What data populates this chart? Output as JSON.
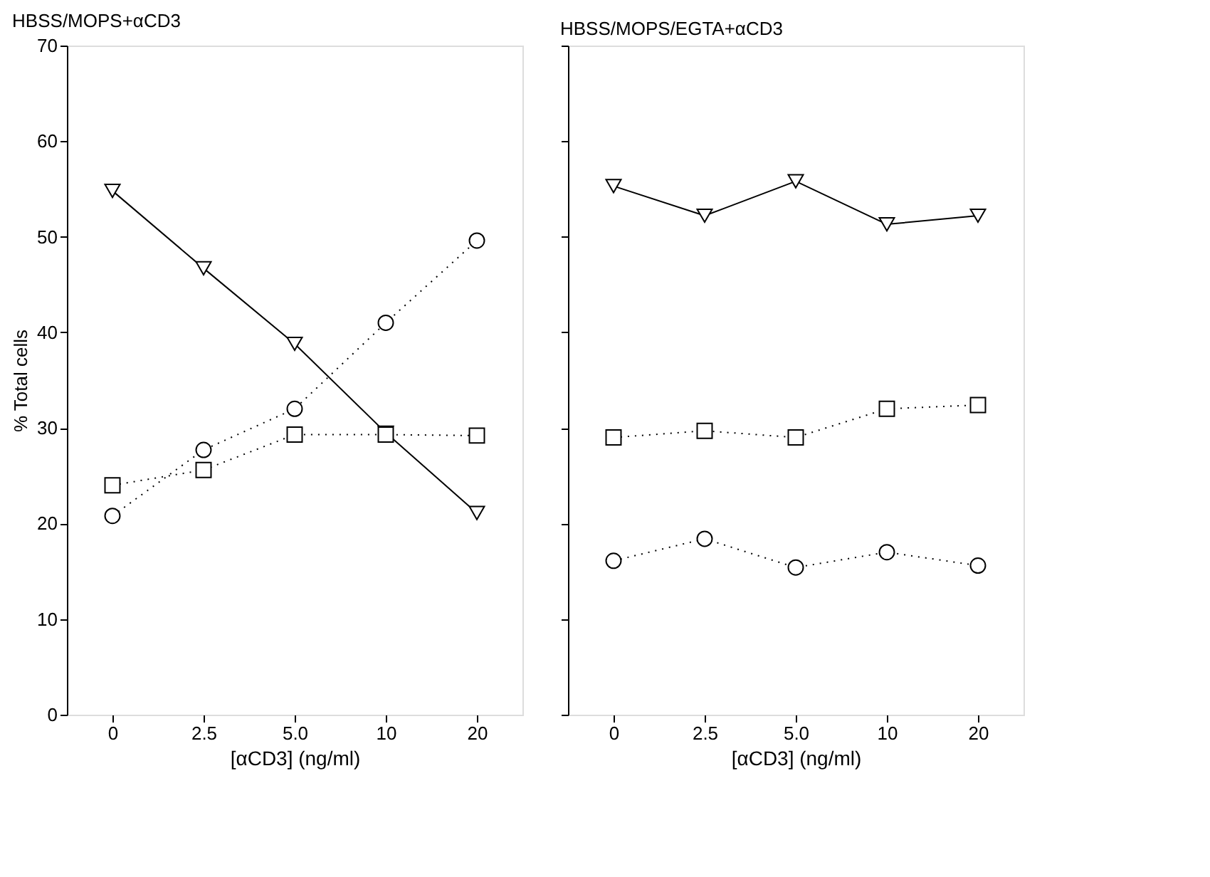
{
  "chart_data": [
    {
      "type": "line",
      "title": "HBSS/MOPS+αCD3",
      "xlabel": "[αCD3] (ng/ml)",
      "ylabel": "% Total cells",
      "categories": [
        "0",
        "2.5",
        "5.0",
        "10",
        "20"
      ],
      "ylim": [
        0,
        70
      ],
      "yticks": [
        0,
        10,
        20,
        30,
        40,
        50,
        60,
        70
      ],
      "grid": false,
      "series": [
        {
          "color": "#000000",
          "marker": "triangle",
          "line_style": "solid",
          "values": [
            54.8,
            46.7,
            38.8,
            29.5,
            21.1
          ]
        },
        {
          "color": "#000000",
          "marker": "circle",
          "line_style": "dotted",
          "values": [
            20.8,
            27.7,
            32,
            41,
            49.6
          ]
        },
        {
          "color": "#000000",
          "marker": "square",
          "line_style": "dotted",
          "values": [
            24,
            25.6,
            29.3,
            29.3,
            29.2
          ]
        }
      ]
    },
    {
      "type": "line",
      "title": "HBSS/MOPS/EGTA+αCD3",
      "xlabel": "[αCD3] (ng/ml)",
      "categories": [
        "0",
        "2.5",
        "5.0",
        "10",
        "20"
      ],
      "ylim": [
        0,
        70
      ],
      "yticks": [
        0,
        10,
        20,
        30,
        40,
        50,
        60,
        70
      ],
      "tick_labels": "x",
      "grid": false,
      "series": [
        {
          "color": "#000000",
          "marker": "triangle",
          "line_style": "solid",
          "values": [
            55.3,
            52.2,
            55.8,
            51.3,
            52.2
          ]
        },
        {
          "color": "#000000",
          "marker": "square",
          "line_style": "dotted",
          "values": [
            29,
            29.7,
            29,
            32,
            32.4
          ]
        },
        {
          "color": "#000000",
          "marker": "circle",
          "line_style": "dotted",
          "values": [
            16.1,
            18.4,
            15.4,
            17,
            15.6
          ]
        }
      ]
    }
  ]
}
